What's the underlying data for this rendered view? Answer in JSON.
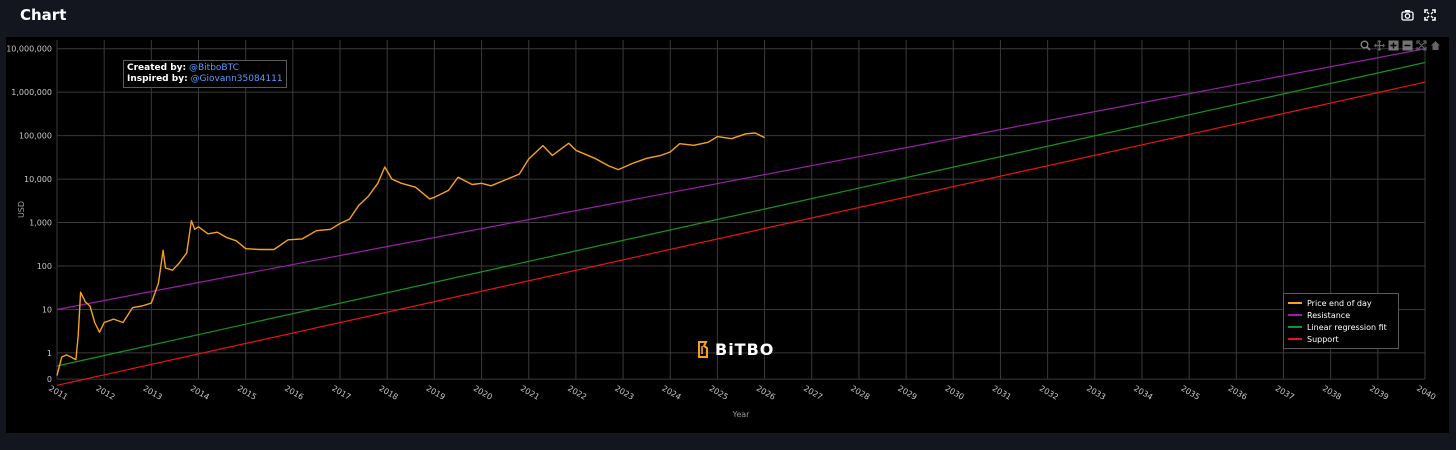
{
  "header": {
    "title": "Chart"
  },
  "toolbar": {
    "icons": [
      "camera-icon",
      "fullscreen-icon"
    ]
  },
  "modebar": {
    "icons": [
      "zoom-icon",
      "pan-icon",
      "zoom-in-icon",
      "zoom-out-icon",
      "autoscale-icon",
      "home-icon"
    ]
  },
  "credits": {
    "created_label": "Created by:",
    "created_handle": "@BitboBTC",
    "inspired_label": "Inspired by:",
    "inspired_handle": "@Giovann35084111"
  },
  "logo": {
    "text": "BiTBO",
    "accent": "#f7a21b"
  },
  "chart_data": {
    "type": "line",
    "xlabel": "Year",
    "ylabel": "USD",
    "y_scale": "log",
    "xlim": [
      2011,
      2040
    ],
    "ylim_log10": [
      -0.6,
      7.2
    ],
    "x_ticks": [
      "2011",
      "2012",
      "2013",
      "2014",
      "2015",
      "2016",
      "2017",
      "2018",
      "2019",
      "2020",
      "2021",
      "2022",
      "2023",
      "2024",
      "2025",
      "2026",
      "2027",
      "2028",
      "2029",
      "2030",
      "2031",
      "2032",
      "2033",
      "2034",
      "2035",
      "2036",
      "2037",
      "2038",
      "2039",
      "2040"
    ],
    "y_ticks": [
      {
        "label": "0",
        "value": 0.25
      },
      {
        "label": "1",
        "value": 1
      },
      {
        "label": "10",
        "value": 10
      },
      {
        "label": "100",
        "value": 100
      },
      {
        "label": "1,000",
        "value": 1000
      },
      {
        "label": "10,000",
        "value": 10000
      },
      {
        "label": "100,000",
        "value": 100000
      },
      {
        "label": "1,000,000",
        "value": 1000000
      },
      {
        "label": "10,000,000",
        "value": 10000000
      }
    ],
    "legend_position": "bottom-right",
    "grid": true,
    "series": [
      {
        "name": "Price end of day",
        "color": "#f7a21b",
        "x": [
          2011.0,
          2011.1,
          2011.2,
          2011.3,
          2011.4,
          2011.45,
          2011.5,
          2011.6,
          2011.7,
          2011.8,
          2011.9,
          2012.0,
          2012.2,
          2012.4,
          2012.6,
          2012.8,
          2013.0,
          2013.15,
          2013.25,
          2013.3,
          2013.45,
          2013.6,
          2013.75,
          2013.85,
          2013.92,
          2014.0,
          2014.2,
          2014.4,
          2014.6,
          2014.8,
          2015.0,
          2015.3,
          2015.6,
          2015.9,
          2016.2,
          2016.5,
          2016.8,
          2017.0,
          2017.2,
          2017.4,
          2017.6,
          2017.8,
          2017.95,
          2018.1,
          2018.3,
          2018.6,
          2018.9,
          2019.0,
          2019.3,
          2019.5,
          2019.8,
          2020.0,
          2020.2,
          2020.5,
          2020.8,
          2021.0,
          2021.3,
          2021.5,
          2021.85,
          2022.0,
          2022.4,
          2022.7,
          2022.9,
          2023.2,
          2023.5,
          2023.8,
          2024.0,
          2024.2,
          2024.5,
          2024.8,
          2025.0,
          2025.3,
          2025.6,
          2025.8,
          2026.0
        ],
        "values": [
          0.3,
          0.8,
          0.9,
          0.8,
          0.7,
          2.5,
          25,
          15,
          12,
          5,
          3,
          5,
          6,
          5,
          11,
          12,
          14,
          40,
          230,
          90,
          80,
          120,
          200,
          1100,
          700,
          800,
          550,
          600,
          450,
          380,
          250,
          240,
          240,
          400,
          420,
          650,
          700,
          950,
          1200,
          2500,
          4000,
          8000,
          19000,
          10000,
          8000,
          6500,
          3500,
          3800,
          5500,
          11000,
          7500,
          8000,
          7000,
          9500,
          13000,
          29000,
          59000,
          35000,
          67000,
          46000,
          30000,
          20000,
          16500,
          23000,
          30000,
          35000,
          42000,
          65000,
          60000,
          70000,
          95000,
          85000,
          110000,
          115000,
          90000
        ]
      },
      {
        "name": "Resistance",
        "color": "#9b1ea8",
        "x": [
          2011,
          2040
        ],
        "values": [
          10,
          10000000
        ]
      },
      {
        "name": "Linear regression fit",
        "color": "#16951e",
        "x": [
          2011,
          2040
        ],
        "values": [
          0.5,
          4800000
        ]
      },
      {
        "name": "Support",
        "color": "#e61414",
        "x": [
          2011,
          2040
        ],
        "values": [
          0.18,
          1700000
        ]
      }
    ]
  }
}
